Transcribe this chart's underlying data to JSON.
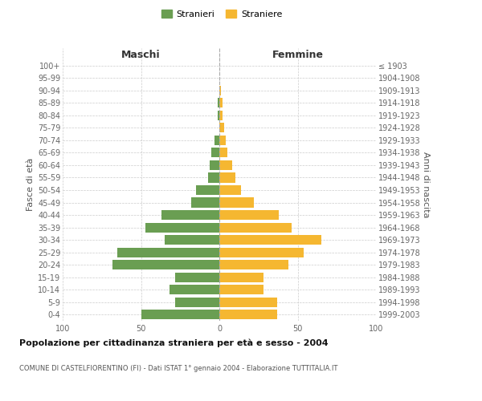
{
  "age_groups": [
    "0-4",
    "5-9",
    "10-14",
    "15-19",
    "20-24",
    "25-29",
    "30-34",
    "35-39",
    "40-44",
    "45-49",
    "50-54",
    "55-59",
    "60-64",
    "65-69",
    "70-74",
    "75-79",
    "80-84",
    "85-89",
    "90-94",
    "95-99",
    "100+"
  ],
  "birth_years": [
    "1999-2003",
    "1994-1998",
    "1989-1993",
    "1984-1988",
    "1979-1983",
    "1974-1978",
    "1969-1973",
    "1964-1968",
    "1959-1963",
    "1954-1958",
    "1949-1953",
    "1944-1948",
    "1939-1943",
    "1934-1938",
    "1929-1933",
    "1924-1928",
    "1919-1923",
    "1914-1918",
    "1909-1913",
    "1904-1908",
    "≤ 1903"
  ],
  "maschi": [
    50,
    28,
    32,
    28,
    68,
    65,
    35,
    47,
    37,
    18,
    15,
    7,
    6,
    5,
    3,
    0,
    1,
    1,
    0,
    0,
    0
  ],
  "femmine": [
    37,
    37,
    28,
    28,
    44,
    54,
    65,
    46,
    38,
    22,
    14,
    10,
    8,
    5,
    4,
    3,
    2,
    2,
    1,
    0,
    0
  ],
  "maschi_color": "#6a9e52",
  "femmine_color": "#f5b731",
  "title": "Popolazione per cittadinanza straniera per età e sesso - 2004",
  "subtitle": "COMUNE DI CASTELFIORENTINO (FI) - Dati ISTAT 1° gennaio 2004 - Elaborazione TUTTITALIA.IT",
  "ylabel_left": "Fasce di età",
  "ylabel_right": "Anni di nascita",
  "label_maschi": "Maschi",
  "label_femmine": "Femmine",
  "legend_maschi": "Stranieri",
  "legend_femmine": "Straniere",
  "xlim": 100,
  "background_color": "#ffffff",
  "grid_color": "#cccccc"
}
